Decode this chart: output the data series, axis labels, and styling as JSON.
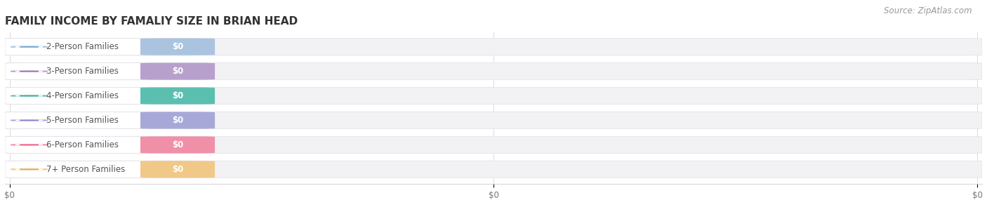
{
  "title": "FAMILY INCOME BY FAMALIY SIZE IN BRIAN HEAD",
  "source": "Source: ZipAtlas.com",
  "categories": [
    "2-Person Families",
    "3-Person Families",
    "4-Person Families",
    "5-Person Families",
    "6-Person Families",
    "7+ Person Families"
  ],
  "values": [
    0,
    0,
    0,
    0,
    0,
    0
  ],
  "bar_colors": [
    "#aac4e0",
    "#b8a0cc",
    "#5bbfb0",
    "#a8a8d8",
    "#f090a8",
    "#f0c888"
  ],
  "dot_colors": [
    "#7aaad0",
    "#9978bb",
    "#40b0a0",
    "#8888cc",
    "#ee6688",
    "#e0aa55"
  ],
  "label_color": "#555555",
  "value_label_color": "#ffffff",
  "background_color": "#ffffff",
  "bar_bg_color": "#f2f2f5",
  "bar_bg_edge_color": "#e2e2ea",
  "bar_white_color": "#ffffff",
  "bar_white_edge_color": "#e0e0e8",
  "xtick_labels": [
    "$0",
    "$0",
    "$0"
  ],
  "xtick_positions": [
    0.0,
    0.5,
    1.0
  ],
  "title_fontsize": 11,
  "label_fontsize": 8.5,
  "source_fontsize": 8.5,
  "figsize": [
    14.06,
    3.05
  ],
  "dpi": 100
}
